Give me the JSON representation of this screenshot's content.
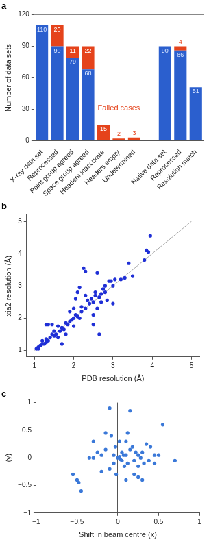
{
  "chart_data": [
    {
      "type": "bar",
      "title": "a",
      "stacked": true,
      "data_labels": true,
      "categories": [
        "X-ray data set",
        "Reprocessed",
        "Point group agreed",
        "Space group agreed",
        "Headers inaccurate",
        "Headers empty",
        "Undetermined",
        null,
        "Native data set",
        "Reprocessed",
        "Resolution match"
      ],
      "series": [
        {
          "color": "#2b5fce",
          "values": [
            110,
            90,
            79,
            68,
            null,
            null,
            null,
            null,
            90,
            86,
            51
          ]
        },
        {
          "color": "#e5431b",
          "values": [
            null,
            20,
            11,
            22,
            15,
            2,
            3,
            null,
            null,
            4,
            null
          ]
        }
      ],
      "ylabel": "Number of data sets",
      "ylim": [
        0,
        120
      ],
      "yticks": [
        0,
        30,
        60,
        90,
        120
      ],
      "annotations": [
        "Failed cases"
      ]
    },
    {
      "type": "scatter",
      "title": "b",
      "xlabel": "PDB resolution (Å)",
      "ylabel": "xia2 resolution (Å)",
      "xlim": [
        0.8,
        5.2
      ],
      "ylim": [
        0.8,
        5.2
      ],
      "xticks": [
        1,
        2,
        3,
        4,
        5
      ],
      "yticks": [
        1,
        2,
        3,
        4,
        5
      ],
      "series": [
        {
          "color": "#1f2fd6",
          "marker": "circle",
          "x": [
            1.05,
            1.1,
            1.15,
            1.2,
            1.25,
            1.3,
            1.3,
            1.35,
            1.3,
            1.35,
            1.45,
            1.4,
            1.45,
            1.5,
            1.5,
            1.55,
            1.6,
            1.6,
            1.65,
            1.7,
            1.7,
            1.75,
            1.8,
            1.8,
            1.85,
            1.9,
            1.9,
            1.95,
            2.0,
            2.0,
            2.0,
            2.05,
            2.05,
            2.1,
            2.1,
            2.15,
            2.15,
            2.2,
            2.2,
            2.25,
            2.3,
            2.3,
            2.3,
            2.35,
            2.4,
            2.45,
            2.5,
            2.5,
            2.5,
            2.55,
            2.55,
            2.6,
            2.6,
            2.65,
            2.65,
            2.7,
            2.7,
            2.75,
            2.8,
            2.8,
            2.85,
            2.9,
            2.95,
            3.0,
            3.0,
            3.05,
            3.2,
            3.3,
            3.4,
            3.5,
            3.8,
            3.85,
            3.9,
            3.95,
            1.1,
            1.2
          ],
          "values": [
            1.05,
            1.1,
            1.15,
            1.2,
            1.2,
            1.25,
            1.35,
            1.3,
            1.8,
            1.8,
            1.8,
            1.4,
            1.5,
            1.45,
            1.6,
            1.5,
            1.4,
            1.75,
            1.6,
            1.7,
            1.2,
            1.65,
            1.85,
            1.5,
            1.8,
            1.9,
            2.2,
            1.95,
            2.0,
            2.3,
            1.75,
            2.1,
            2.6,
            2.05,
            2.8,
            2.95,
            2.0,
            2.2,
            2.35,
            3.55,
            3.45,
            2.3,
            2.7,
            2.55,
            2.45,
            2.6,
            2.5,
            1.8,
            2.1,
            2.7,
            2.8,
            2.3,
            3.4,
            1.5,
            2.65,
            2.75,
            2.5,
            2.9,
            2.8,
            3.0,
            2.55,
            3.15,
            3.15,
            3.0,
            2.45,
            3.2,
            3.2,
            3.25,
            3.7,
            3.3,
            3.8,
            4.1,
            4.05,
            4.55,
            1.05,
            1.3
          ]
        },
        {
          "type": "line",
          "color": "#a8a8a8",
          "x": [
            1,
            5
          ],
          "values": [
            1,
            5
          ]
        }
      ]
    },
    {
      "type": "scatter",
      "title": "c",
      "xlabel": "Shift in beam centre (x)",
      "ylabel": "(y)",
      "xlim": [
        -1,
        1
      ],
      "ylim": [
        -1,
        1
      ],
      "xticks": [
        {
          "value": -1,
          "label": "−1"
        },
        {
          "value": -0.5,
          "label": "−0.5"
        },
        0,
        0.5,
        1
      ],
      "yticks": [
        {
          "value": -1,
          "label": "−1"
        },
        {
          "value": -0.5,
          "label": "−0.5"
        },
        0,
        0.5,
        1
      ],
      "series": [
        {
          "color": "#3a78d8",
          "marker": "circle",
          "x": [
            -0.55,
            -0.5,
            -0.48,
            -0.45,
            -0.35,
            -0.3,
            -0.25,
            -0.2,
            -0.15,
            -0.1,
            -0.1,
            -0.05,
            -0.05,
            -0.03,
            0,
            0.02,
            0.03,
            0.05,
            0.05,
            0.07,
            0.08,
            0.1,
            0.1,
            0.12,
            0.15,
            0.15,
            0.18,
            0.2,
            0.22,
            0.25,
            0.25,
            0.28,
            0.3,
            0.32,
            0.35,
            0.4,
            0.45,
            0.5,
            0.55,
            0.7,
            0.2,
            -0.2,
            -0.08,
            0.1,
            0.25,
            0.3,
            -0.15,
            0.02,
            -0.02,
            0.45,
            0.38,
            0.12,
            -0.3
          ],
          "values": [
            -0.3,
            -0.4,
            -0.45,
            -0.6,
            0,
            0,
            0.1,
            0.05,
            0.45,
            0.9,
            -0.2,
            0.05,
            -0.1,
            0.2,
            0,
            0.02,
            -0.03,
            0.1,
            -0.05,
            0.05,
            -0.15,
            0.3,
            0.05,
            -0.1,
            0.85,
            0.15,
            0.2,
            -0.05,
            0.1,
            -0.15,
            0.05,
            0,
            0.1,
            -0.1,
            0.25,
            0.2,
            0.05,
            0.05,
            0.6,
            -0.05,
            -0.3,
            -0.25,
            0.4,
            -0.4,
            -0.35,
            -0.4,
            0.15,
            0.3,
            -0.3,
            -0.1,
            -0.05,
            0.45,
            0.3
          ]
        }
      ]
    }
  ]
}
